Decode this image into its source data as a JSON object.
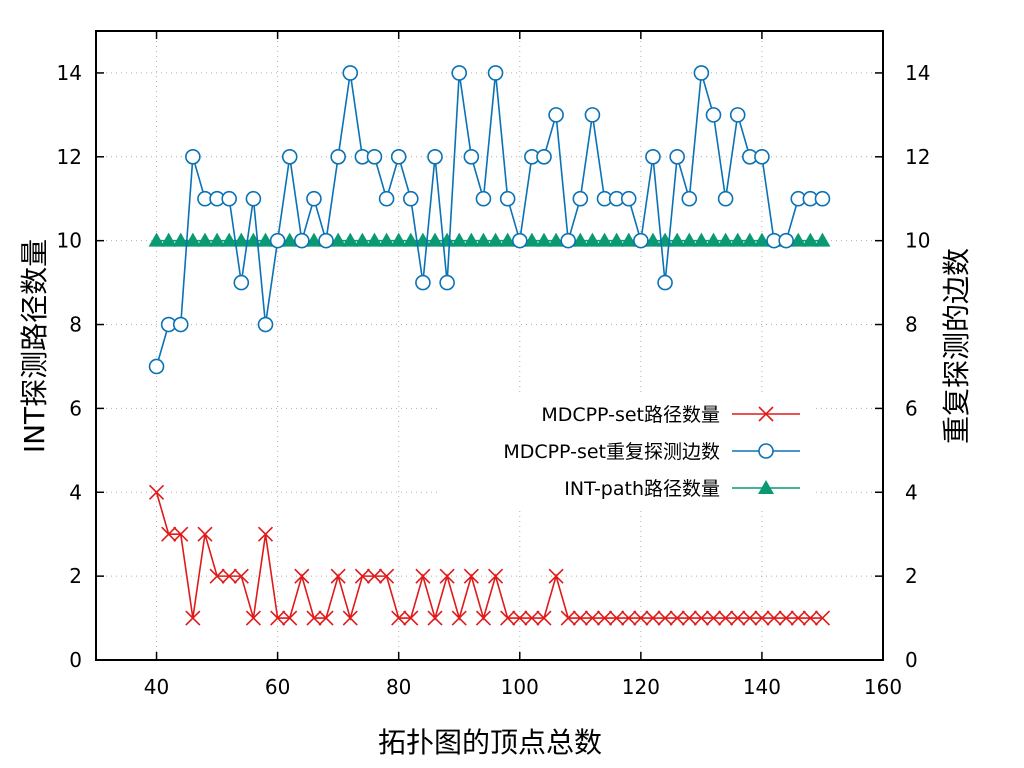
{
  "chart_data": {
    "type": "line",
    "xlabel": "拓扑图的顶点总数",
    "ylabel": "INT探测路径数量",
    "y2label": "重复探测的边数",
    "xlim": [
      30,
      160
    ],
    "ylim": [
      0,
      15
    ],
    "y2lim": [
      0,
      15
    ],
    "xticks": [
      40,
      60,
      80,
      100,
      120,
      140,
      160
    ],
    "yticks": [
      0,
      2,
      4,
      6,
      8,
      10,
      12,
      14
    ],
    "grid": true,
    "legend_position": "center-right",
    "x": [
      40,
      42,
      44,
      46,
      48,
      50,
      52,
      54,
      56,
      58,
      60,
      62,
      64,
      66,
      68,
      70,
      72,
      74,
      76,
      78,
      80,
      82,
      84,
      86,
      88,
      90,
      92,
      94,
      96,
      98,
      100,
      102,
      104,
      106,
      108,
      110,
      112,
      114,
      116,
      118,
      120,
      122,
      124,
      126,
      128,
      130,
      132,
      134,
      136,
      138,
      140,
      142,
      144,
      146,
      148,
      150
    ],
    "series": [
      {
        "name": "MDCPP-set路径数量",
        "color": "#e01a1a",
        "marker": "x",
        "axis": "left",
        "values": [
          4,
          3,
          3,
          1,
          3,
          2,
          2,
          2,
          1,
          3,
          1,
          1,
          2,
          1,
          1,
          2,
          1,
          2,
          2,
          2,
          1,
          1,
          2,
          1,
          2,
          1,
          2,
          1,
          2,
          1,
          1,
          1,
          1,
          2,
          1,
          1,
          1,
          1,
          1,
          1,
          1,
          1,
          1,
          1,
          1,
          1,
          1,
          1,
          1,
          1,
          1,
          1,
          1,
          1,
          1,
          1
        ]
      },
      {
        "name": "MDCPP-set重复探测边数",
        "color": "#0a72b5",
        "marker": "circle",
        "axis": "right",
        "values": [
          7,
          8,
          8,
          12,
          11,
          11,
          11,
          9,
          11,
          8,
          10,
          12,
          10,
          11,
          10,
          12,
          14,
          12,
          12,
          11,
          12,
          11,
          9,
          12,
          9,
          14,
          12,
          11,
          14,
          11,
          10,
          12,
          12,
          13,
          10,
          11,
          13,
          11,
          11,
          11,
          10,
          12,
          9,
          12,
          11,
          14,
          13,
          11,
          13,
          12,
          12,
          10,
          10,
          11,
          11,
          11
        ]
      },
      {
        "name": "INT-path路径数量",
        "color": "#0a9a73",
        "marker": "triangle",
        "axis": "left",
        "values": [
          10,
          10,
          10,
          10,
          10,
          10,
          10,
          10,
          10,
          10,
          10,
          10,
          10,
          10,
          10,
          10,
          10,
          10,
          10,
          10,
          10,
          10,
          10,
          10,
          10,
          10,
          10,
          10,
          10,
          10,
          10,
          10,
          10,
          10,
          10,
          10,
          10,
          10,
          10,
          10,
          10,
          10,
          10,
          10,
          10,
          10,
          10,
          10,
          10,
          10,
          10,
          10,
          10,
          10,
          10,
          10
        ]
      }
    ]
  }
}
